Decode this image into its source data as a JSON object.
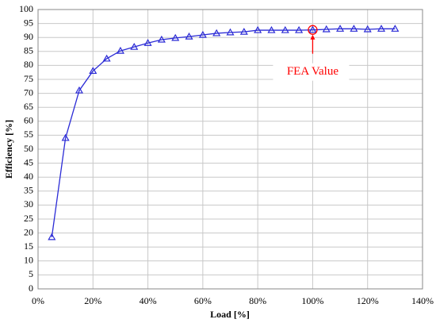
{
  "chart_data": {
    "type": "line",
    "x": [
      5,
      10,
      15,
      20,
      25,
      30,
      35,
      40,
      45,
      50,
      55,
      60,
      65,
      70,
      75,
      80,
      85,
      90,
      95,
      100,
      105,
      110,
      115,
      120,
      125,
      130
    ],
    "series": [
      {
        "name": "Efficiency",
        "color": "#2b2bd6",
        "values": [
          18.5,
          54,
          71,
          78,
          82.4,
          85.2,
          86.6,
          88,
          89.2,
          89.8,
          90.3,
          90.9,
          91.5,
          91.8,
          92,
          92.6,
          92.6,
          92.6,
          92.6,
          92.7,
          92.9,
          93.1,
          93.1,
          92.9,
          93.1,
          93.1
        ]
      }
    ],
    "xlabel": "Load [%]",
    "ylabel": "Efficiency [%]",
    "xlim": [
      0,
      140
    ],
    "xticks": [
      {
        "value": 0,
        "label": "0%"
      },
      {
        "value": 20,
        "label": "20%"
      },
      {
        "value": 40,
        "label": "40%"
      },
      {
        "value": 60,
        "label": "60%"
      },
      {
        "value": 80,
        "label": "80%"
      },
      {
        "value": 100,
        "label": "100%"
      },
      {
        "value": 120,
        "label": "120%"
      },
      {
        "value": 140,
        "label": "140%"
      }
    ],
    "ylim": [
      0,
      100
    ],
    "yticks": [
      0,
      5,
      10,
      15,
      20,
      25,
      30,
      35,
      40,
      45,
      50,
      55,
      60,
      65,
      70,
      75,
      80,
      85,
      90,
      95,
      100
    ],
    "grid": true,
    "annotation": {
      "text": "FEA Value",
      "x": 100,
      "color": "#ff0000"
    }
  }
}
